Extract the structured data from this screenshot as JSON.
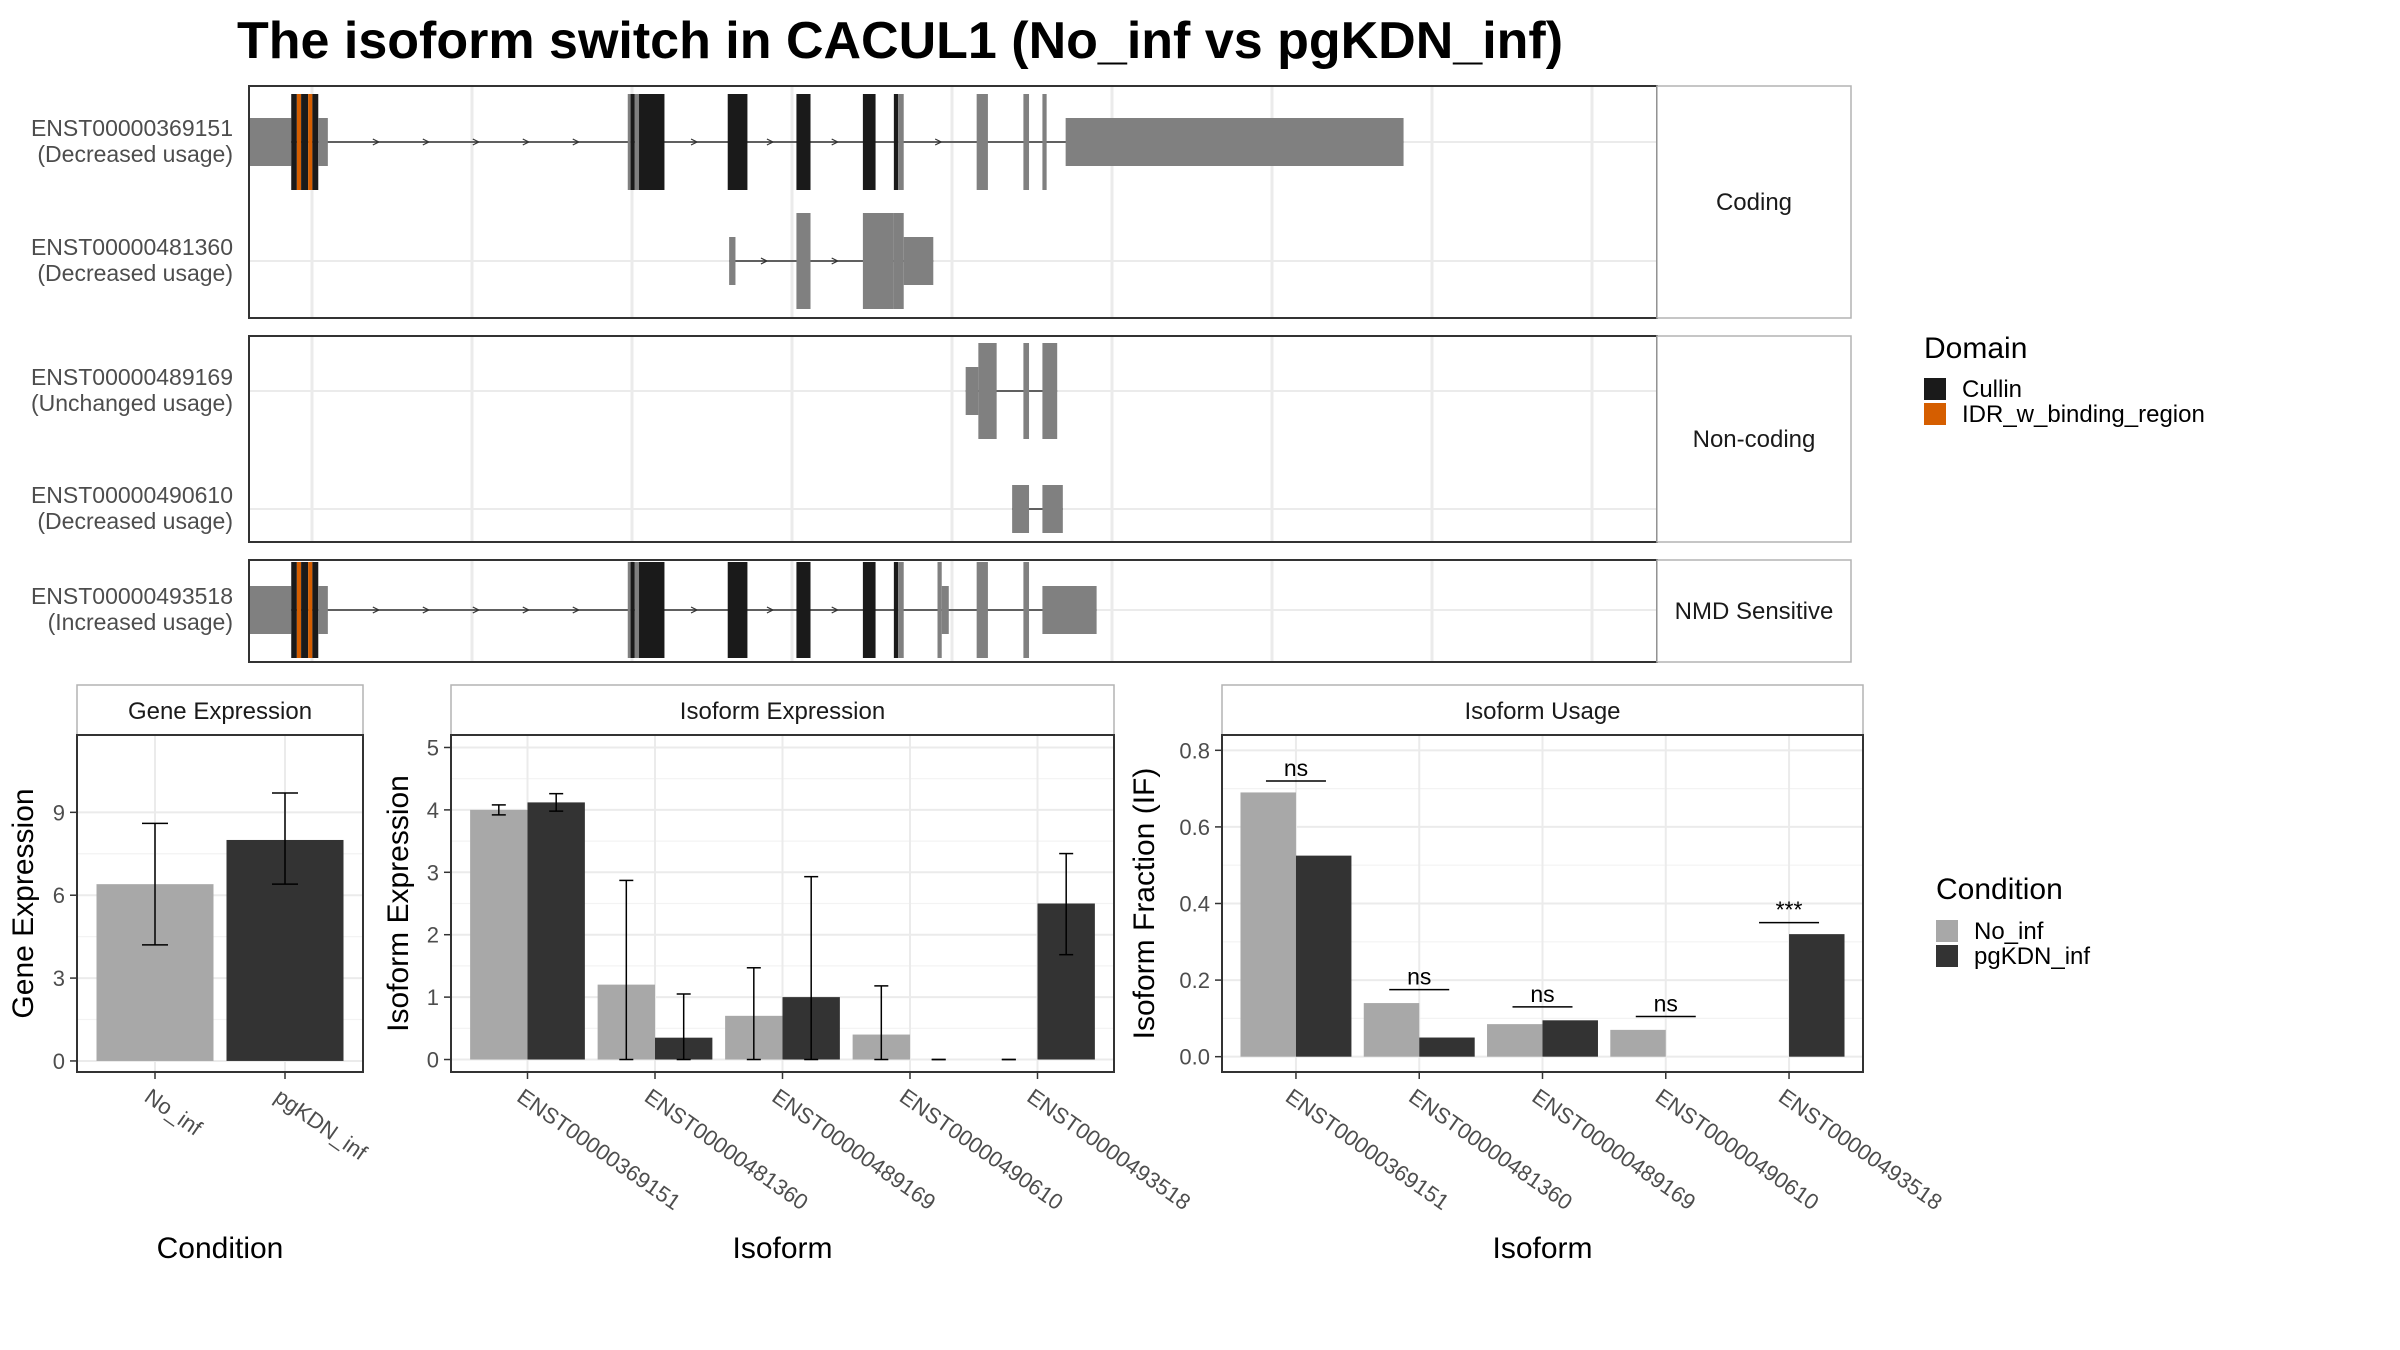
{
  "title": "The isoform switch in CACUL1 (No_inf vs pgKDN_inf)",
  "colors": {
    "utr": "#808080",
    "cullin": "#1a1a1a",
    "idr": "#d55e00",
    "no_inf": "#a8a8a8",
    "pgkdn_inf": "#333333"
  },
  "transcripts": [
    {
      "id": "ENST00000369151",
      "usage": "(Decreased usage)",
      "group": "Coding",
      "exons": [
        [
          0.0,
          3.0,
          "u"
        ],
        [
          3.0,
          3.4,
          "c"
        ],
        [
          3.4,
          3.7,
          "i"
        ],
        [
          3.7,
          4.2,
          "c"
        ],
        [
          4.2,
          4.5,
          "i"
        ],
        [
          4.5,
          4.92,
          "c"
        ],
        [
          4.92,
          5.6,
          "u"
        ],
        [
          26.9,
          27.1,
          "u"
        ],
        [
          27.1,
          27.4,
          "c"
        ],
        [
          27.4,
          27.7,
          "u"
        ],
        [
          27.7,
          28.4,
          "c"
        ],
        [
          28.3,
          29.5,
          "c"
        ],
        [
          29.1,
          29.5,
          "c"
        ],
        [
          34.0,
          35.4,
          "c"
        ],
        [
          38.88,
          39.88,
          "c"
        ],
        [
          43.6,
          44.5,
          "c"
        ],
        [
          45.8,
          46.1,
          "c"
        ],
        [
          46.1,
          46.5,
          "u"
        ],
        [
          51.68,
          52.48,
          "u"
        ],
        [
          55.0,
          55.4,
          "u"
        ],
        [
          56.35,
          56.65,
          "u"
        ],
        [
          58.0,
          82.0,
          "u"
        ]
      ]
    },
    {
      "id": "ENST00000481360",
      "usage": "(Decreased usage)",
      "group": "Coding",
      "exons": [
        [
          34.1,
          34.55,
          "u"
        ],
        [
          38.88,
          39.88,
          "u"
        ],
        [
          43.6,
          45.8,
          "u"
        ],
        [
          45.8,
          46.5,
          "u"
        ],
        [
          46.5,
          48.6,
          "u"
        ]
      ]
    },
    {
      "id": "ENST00000489169",
      "usage": "(Unchanged usage)",
      "group": "Non-coding",
      "exons": [
        [
          50.9,
          51.8,
          "u"
        ],
        [
          51.8,
          53.1,
          "u"
        ],
        [
          55.0,
          55.4,
          "u"
        ],
        [
          56.35,
          57.4,
          "u"
        ]
      ]
    },
    {
      "id": "ENST00000490610",
      "usage": "(Decreased usage)",
      "group": "Non-coding",
      "exons": [
        [
          54.2,
          55.4,
          "u"
        ],
        [
          56.35,
          57.8,
          "u"
        ]
      ]
    },
    {
      "id": "ENST00000493518",
      "usage": "(Increased usage)",
      "group": "NMD Sensitive",
      "exons": [
        [
          0.0,
          3.0,
          "u"
        ],
        [
          3.0,
          3.4,
          "c"
        ],
        [
          3.4,
          3.7,
          "i"
        ],
        [
          3.7,
          4.2,
          "c"
        ],
        [
          4.2,
          4.5,
          "i"
        ],
        [
          4.5,
          4.92,
          "c"
        ],
        [
          4.92,
          5.6,
          "u"
        ],
        [
          26.9,
          27.1,
          "u"
        ],
        [
          27.1,
          27.4,
          "c"
        ],
        [
          27.4,
          27.7,
          "u"
        ],
        [
          27.7,
          28.4,
          "c"
        ],
        [
          28.3,
          29.5,
          "c"
        ],
        [
          29.1,
          29.5,
          "c"
        ],
        [
          34.0,
          35.4,
          "c"
        ],
        [
          38.88,
          39.88,
          "c"
        ],
        [
          43.6,
          44.5,
          "c"
        ],
        [
          45.8,
          46.1,
          "c"
        ],
        [
          46.1,
          46.5,
          "u"
        ],
        [
          48.9,
          49.2,
          "u"
        ],
        [
          49.2,
          49.7,
          "u"
        ],
        [
          51.68,
          52.48,
          "u"
        ],
        [
          55.0,
          55.4,
          "u"
        ],
        [
          56.35,
          60.2,
          "u"
        ]
      ]
    }
  ],
  "facets": [
    "Coding",
    "Non-coding",
    "NMD Sensitive"
  ],
  "domain_legend": {
    "title": "Domain",
    "items": [
      {
        "label": "Cullin",
        "color": "#1a1a1a"
      },
      {
        "label": "IDR_w_binding_region",
        "color": "#d55e00"
      }
    ]
  },
  "condition_legend": {
    "title": "Condition",
    "items": [
      {
        "label": "No_inf",
        "color": "#a8a8a8"
      },
      {
        "label": "pgKDN_inf",
        "color": "#333333"
      }
    ]
  },
  "chart_data": [
    {
      "type": "bar",
      "title": "Gene Expression",
      "xlabel": "Condition",
      "ylabel": "Gene Expression",
      "ylim": [
        -0.4,
        11.8
      ],
      "yticks": [
        0,
        3,
        6,
        9
      ],
      "categories": [
        "No_inf",
        "pgKDN_inf"
      ],
      "values": [
        6.4,
        8.0
      ],
      "errors": [
        [
          4.2,
          8.6
        ],
        [
          6.4,
          9.7
        ]
      ],
      "colors": [
        "#a8a8a8",
        "#333333"
      ]
    },
    {
      "type": "bar",
      "title": "Isoform Expression",
      "xlabel": "Isoform",
      "ylabel": "Isoform Expression",
      "ylim": [
        -0.2,
        5.2
      ],
      "yticks": [
        0,
        1,
        2,
        3,
        4,
        5
      ],
      "categories": [
        "ENST00000369151",
        "ENST00000481360",
        "ENST00000489169",
        "ENST00000490610",
        "ENST00000493518"
      ],
      "series": [
        {
          "name": "No_inf",
          "values": [
            4.0,
            1.2,
            0.7,
            0.4,
            0.0
          ],
          "errors": [
            [
              3.92,
              4.08
            ],
            [
              0.0,
              2.87
            ],
            [
              0.0,
              1.47
            ],
            [
              0.0,
              1.18
            ],
            [
              0.0,
              0.0
            ]
          ]
        },
        {
          "name": "pgKDN_inf",
          "values": [
            4.12,
            0.35,
            1.0,
            0.0,
            2.5
          ],
          "errors": [
            [
              3.98,
              4.26
            ],
            [
              0.0,
              1.05
            ],
            [
              0.0,
              2.93
            ],
            [
              0.0,
              0.0
            ],
            [
              1.68,
              3.3
            ]
          ]
        }
      ]
    },
    {
      "type": "bar",
      "title": "Isoform Usage",
      "xlabel": "Isoform",
      "ylabel": "Isoform Fraction (IF)",
      "ylim": [
        -0.04,
        0.84
      ],
      "yticks": [
        0.0,
        0.2,
        0.4,
        0.6,
        0.8
      ],
      "ytick_labels": [
        "0.0",
        "0.2",
        "0.4",
        "0.6",
        "0.8"
      ],
      "categories": [
        "ENST00000369151",
        "ENST00000481360",
        "ENST00000489169",
        "ENST00000490610",
        "ENST00000493518"
      ],
      "series": [
        {
          "name": "No_inf",
          "values": [
            0.69,
            0.14,
            0.085,
            0.07,
            0.0
          ]
        },
        {
          "name": "pgKDN_inf",
          "values": [
            0.525,
            0.05,
            0.095,
            0.0,
            0.32
          ]
        }
      ],
      "significance": [
        {
          "label": "ns",
          "y": 0.72
        },
        {
          "label": "ns",
          "y": 0.175
        },
        {
          "label": "ns",
          "y": 0.13
        },
        {
          "label": "ns",
          "y": 0.105
        },
        {
          "label": "***",
          "y": 0.35
        }
      ]
    }
  ]
}
